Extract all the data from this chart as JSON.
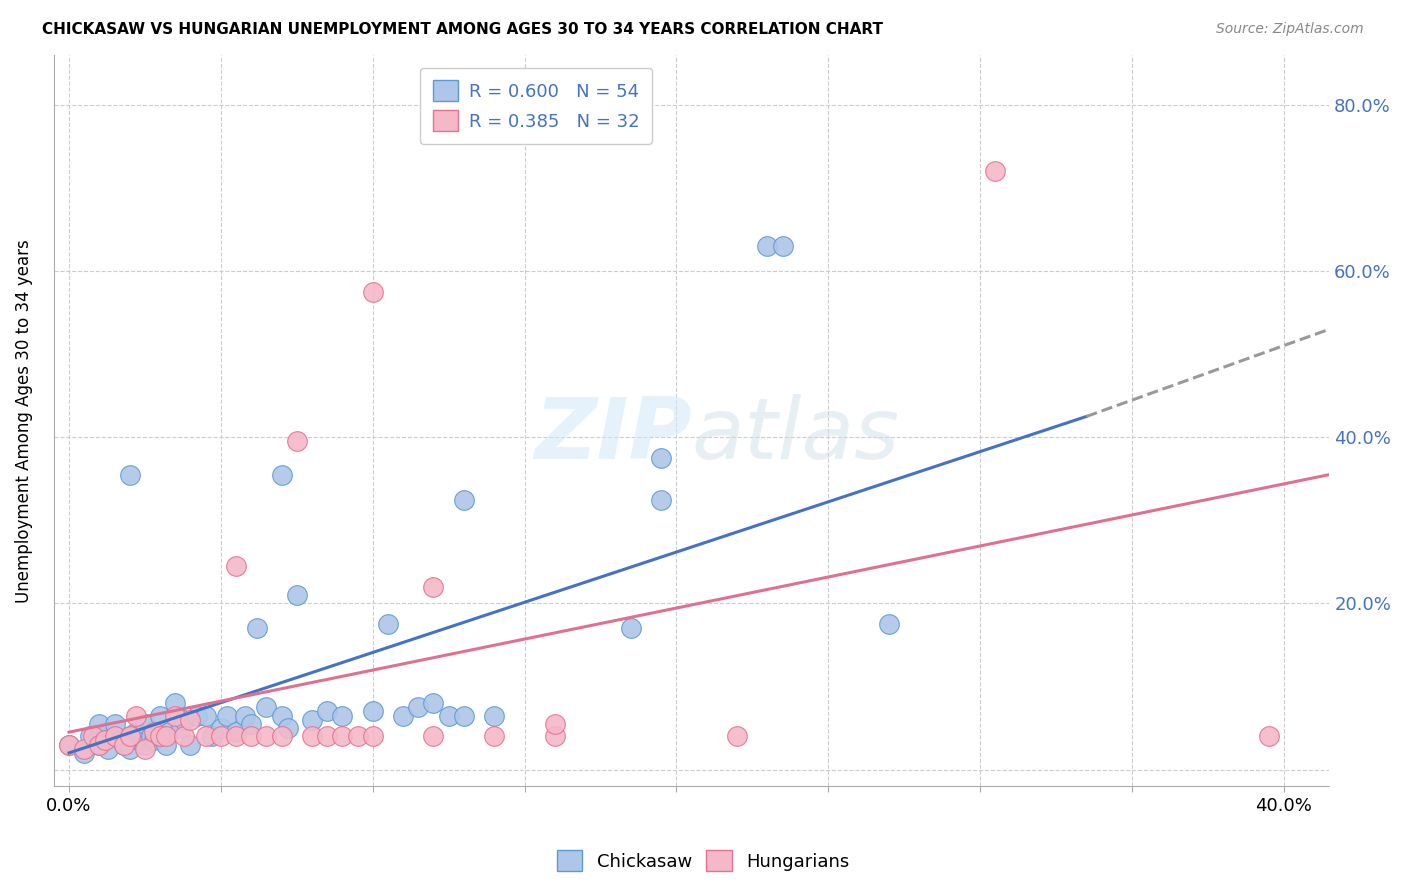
{
  "title": "CHICKASAW VS HUNGARIAN UNEMPLOYMENT AMONG AGES 30 TO 34 YEARS CORRELATION CHART",
  "source": "Source: ZipAtlas.com",
  "ylabel": "Unemployment Among Ages 30 to 34 years",
  "xlim": [
    -0.005,
    0.415
  ],
  "ylim": [
    -0.02,
    0.86
  ],
  "x_ticks": [
    0.0,
    0.05,
    0.1,
    0.15,
    0.2,
    0.25,
    0.3,
    0.35,
    0.4
  ],
  "y_ticks": [
    0.0,
    0.2,
    0.4,
    0.6,
    0.8
  ],
  "chickasaw_color": "#aec6e8",
  "chickasaw_edge": "#5b9bd5",
  "hungarian_color": "#f4b8c8",
  "hungarian_edge": "#e87090",
  "trend1_color": "#4472c4",
  "trend2_color": "#e07090",
  "trend_ext_color": "#999999",
  "legend_label1": "R = 0.600   N = 54",
  "legend_label2": "R = 0.385   N = 32",
  "trend1_x0": 0.0,
  "trend1_y0": 0.02,
  "trend1_x1": 0.335,
  "trend1_y1": 0.425,
  "trend1_ext_x1": 0.415,
  "trend1_ext_y1": 0.53,
  "trend2_x0": 0.0,
  "trend2_y0": 0.045,
  "trend2_x1": 0.415,
  "trend2_y1": 0.355,
  "chickasaw_x": [
    0.0,
    0.005,
    0.007,
    0.01,
    0.01,
    0.01,
    0.012,
    0.013,
    0.015,
    0.015,
    0.017,
    0.018,
    0.02,
    0.02,
    0.022,
    0.023,
    0.025,
    0.025,
    0.027,
    0.028,
    0.03,
    0.03,
    0.032,
    0.033,
    0.035,
    0.037,
    0.038,
    0.04,
    0.042,
    0.045,
    0.047,
    0.05,
    0.052,
    0.055,
    0.058,
    0.06,
    0.062,
    0.065,
    0.07,
    0.072,
    0.075,
    0.08,
    0.085,
    0.09,
    0.1,
    0.105,
    0.11,
    0.115,
    0.12,
    0.125,
    0.13,
    0.14,
    0.185,
    0.27
  ],
  "chickasaw_y": [
    0.03,
    0.02,
    0.04,
    0.03,
    0.04,
    0.055,
    0.035,
    0.025,
    0.04,
    0.055,
    0.035,
    0.03,
    0.025,
    0.04,
    0.045,
    0.035,
    0.03,
    0.055,
    0.04,
    0.035,
    0.04,
    0.065,
    0.03,
    0.045,
    0.08,
    0.05,
    0.06,
    0.03,
    0.065,
    0.065,
    0.04,
    0.05,
    0.065,
    0.045,
    0.065,
    0.055,
    0.17,
    0.075,
    0.065,
    0.05,
    0.21,
    0.06,
    0.07,
    0.065,
    0.07,
    0.175,
    0.065,
    0.075,
    0.08,
    0.065,
    0.065,
    0.065,
    0.17,
    0.175
  ],
  "chickasaw_outlier_x": [
    0.02,
    0.07,
    0.13,
    0.195,
    0.195,
    0.23,
    0.235
  ],
  "chickasaw_outlier_y": [
    0.355,
    0.355,
    0.325,
    0.325,
    0.375,
    0.63,
    0.63
  ],
  "hungarian_x": [
    0.0,
    0.005,
    0.008,
    0.01,
    0.012,
    0.015,
    0.018,
    0.02,
    0.022,
    0.025,
    0.028,
    0.03,
    0.032,
    0.035,
    0.038,
    0.04,
    0.045,
    0.05,
    0.055,
    0.06,
    0.065,
    0.07,
    0.08,
    0.085,
    0.09,
    0.095,
    0.1,
    0.12,
    0.14,
    0.16,
    0.22,
    0.395
  ],
  "hungarian_y": [
    0.03,
    0.025,
    0.04,
    0.03,
    0.035,
    0.04,
    0.03,
    0.04,
    0.065,
    0.025,
    0.045,
    0.04,
    0.04,
    0.065,
    0.04,
    0.06,
    0.04,
    0.04,
    0.04,
    0.04,
    0.04,
    0.04,
    0.04,
    0.04,
    0.04,
    0.04,
    0.04,
    0.04,
    0.04,
    0.04,
    0.04,
    0.04
  ],
  "hungarian_outlier_x": [
    0.055,
    0.075,
    0.1,
    0.12,
    0.16,
    0.305
  ],
  "hungarian_outlier_y": [
    0.245,
    0.395,
    0.575,
    0.22,
    0.055,
    0.72
  ]
}
